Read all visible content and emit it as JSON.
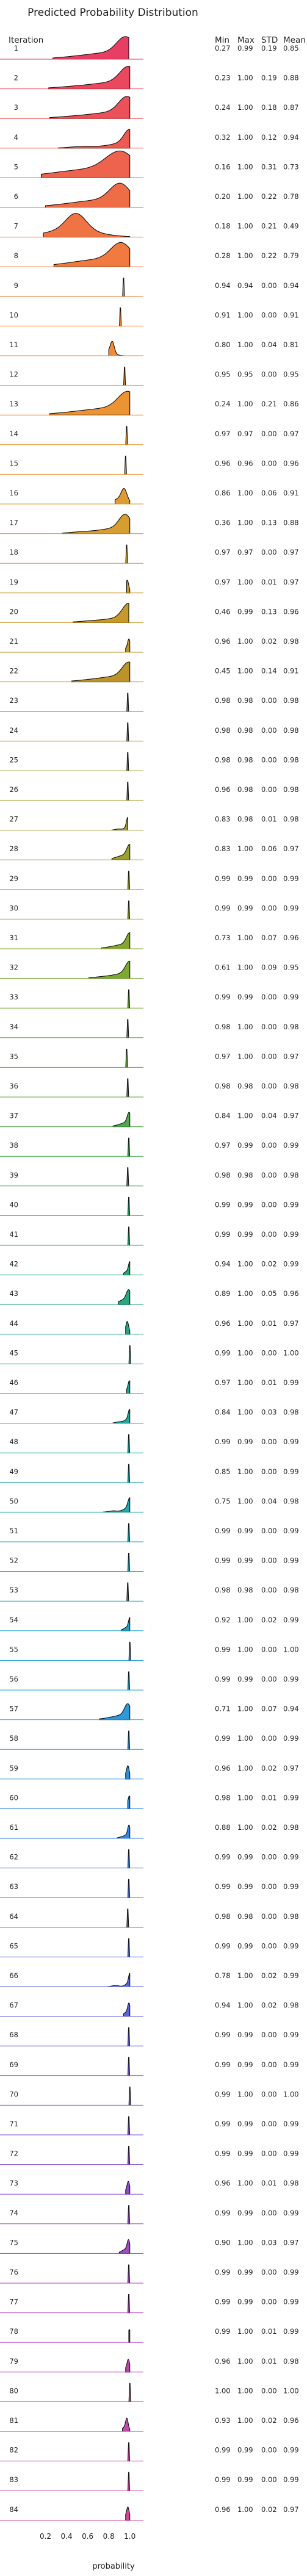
{
  "chart_data": {
    "type": "ridgeline",
    "title": "Predicted Probability Distribution",
    "row_header": "Iteration",
    "xlabel": "probability",
    "xlim": [
      0.0,
      1.1
    ],
    "xticks": [
      "0.2",
      "0.4",
      "0.6",
      "0.8",
      "1.0"
    ],
    "stat_headers": [
      "Min",
      "Max",
      "STD",
      "Mean"
    ],
    "color_stops": [
      "#e8345b",
      "#ee6a3a",
      "#f08c2a",
      "#d39a24",
      "#b08a1c",
      "#959d22",
      "#5fa829",
      "#2aa35a",
      "#16a28c",
      "#17a5b2",
      "#1f97d6",
      "#2f7ae0",
      "#5a5ad6",
      "#8a45c8",
      "#b13fb0",
      "#d23d97"
    ],
    "rows": [
      {
        "iteration": "1",
        "min": 0.27,
        "max": 0.99,
        "std": 0.19,
        "mean": 0.85
      },
      {
        "iteration": "2",
        "min": 0.23,
        "max": 1.0,
        "std": 0.19,
        "mean": 0.88
      },
      {
        "iteration": "3",
        "min": 0.24,
        "max": 1.0,
        "std": 0.18,
        "mean": 0.87
      },
      {
        "iteration": "4",
        "min": 0.32,
        "max": 1.0,
        "std": 0.12,
        "mean": 0.94
      },
      {
        "iteration": "5",
        "min": 0.16,
        "max": 1.0,
        "std": 0.31,
        "mean": 0.73
      },
      {
        "iteration": "6",
        "min": 0.2,
        "max": 1.0,
        "std": 0.22,
        "mean": 0.78
      },
      {
        "iteration": "7",
        "min": 0.18,
        "max": 1.0,
        "std": 0.21,
        "mean": 0.49
      },
      {
        "iteration": "8",
        "min": 0.28,
        "max": 1.0,
        "std": 0.22,
        "mean": 0.79
      },
      {
        "iteration": "9",
        "min": 0.94,
        "max": 0.94,
        "std": 0.0,
        "mean": 0.94
      },
      {
        "iteration": "10",
        "min": 0.91,
        "max": 1.0,
        "std": 0.0,
        "mean": 0.91
      },
      {
        "iteration": "11",
        "min": 0.8,
        "max": 1.0,
        "std": 0.04,
        "mean": 0.81
      },
      {
        "iteration": "12",
        "min": 0.95,
        "max": 0.95,
        "std": 0.0,
        "mean": 0.95
      },
      {
        "iteration": "13",
        "min": 0.24,
        "max": 1.0,
        "std": 0.21,
        "mean": 0.86
      },
      {
        "iteration": "14",
        "min": 0.97,
        "max": 0.97,
        "std": 0.0,
        "mean": 0.97
      },
      {
        "iteration": "15",
        "min": 0.96,
        "max": 0.96,
        "std": 0.0,
        "mean": 0.96
      },
      {
        "iteration": "16",
        "min": 0.86,
        "max": 1.0,
        "std": 0.06,
        "mean": 0.91
      },
      {
        "iteration": "17",
        "min": 0.36,
        "max": 1.0,
        "std": 0.13,
        "mean": 0.88
      },
      {
        "iteration": "18",
        "min": 0.97,
        "max": 0.97,
        "std": 0.0,
        "mean": 0.97
      },
      {
        "iteration": "19",
        "min": 0.97,
        "max": 1.0,
        "std": 0.01,
        "mean": 0.97
      },
      {
        "iteration": "20",
        "min": 0.46,
        "max": 0.99,
        "std": 0.13,
        "mean": 0.96
      },
      {
        "iteration": "21",
        "min": 0.96,
        "max": 1.0,
        "std": 0.02,
        "mean": 0.98
      },
      {
        "iteration": "22",
        "min": 0.45,
        "max": 1.0,
        "std": 0.14,
        "mean": 0.91
      },
      {
        "iteration": "23",
        "min": 0.98,
        "max": 0.98,
        "std": 0.0,
        "mean": 0.98
      },
      {
        "iteration": "24",
        "min": 0.98,
        "max": 0.98,
        "std": 0.0,
        "mean": 0.98
      },
      {
        "iteration": "25",
        "min": 0.98,
        "max": 0.98,
        "std": 0.0,
        "mean": 0.98
      },
      {
        "iteration": "26",
        "min": 0.96,
        "max": 0.98,
        "std": 0.0,
        "mean": 0.98
      },
      {
        "iteration": "27",
        "min": 0.83,
        "max": 0.98,
        "std": 0.01,
        "mean": 0.98
      },
      {
        "iteration": "28",
        "min": 0.83,
        "max": 1.0,
        "std": 0.06,
        "mean": 0.97
      },
      {
        "iteration": "29",
        "min": 0.99,
        "max": 0.99,
        "std": 0.0,
        "mean": 0.99
      },
      {
        "iteration": "30",
        "min": 0.99,
        "max": 0.99,
        "std": 0.0,
        "mean": 0.99
      },
      {
        "iteration": "31",
        "min": 0.73,
        "max": 1.0,
        "std": 0.07,
        "mean": 0.96
      },
      {
        "iteration": "32",
        "min": 0.61,
        "max": 1.0,
        "std": 0.09,
        "mean": 0.95
      },
      {
        "iteration": "33",
        "min": 0.99,
        "max": 0.99,
        "std": 0.0,
        "mean": 0.99
      },
      {
        "iteration": "34",
        "min": 0.98,
        "max": 1.0,
        "std": 0.0,
        "mean": 0.98
      },
      {
        "iteration": "35",
        "min": 0.97,
        "max": 1.0,
        "std": 0.0,
        "mean": 0.97
      },
      {
        "iteration": "36",
        "min": 0.98,
        "max": 0.98,
        "std": 0.0,
        "mean": 0.98
      },
      {
        "iteration": "37",
        "min": 0.84,
        "max": 1.0,
        "std": 0.04,
        "mean": 0.97
      },
      {
        "iteration": "38",
        "min": 0.97,
        "max": 0.99,
        "std": 0.0,
        "mean": 0.99
      },
      {
        "iteration": "39",
        "min": 0.98,
        "max": 0.98,
        "std": 0.0,
        "mean": 0.98
      },
      {
        "iteration": "40",
        "min": 0.99,
        "max": 0.99,
        "std": 0.0,
        "mean": 0.99
      },
      {
        "iteration": "41",
        "min": 0.99,
        "max": 0.99,
        "std": 0.0,
        "mean": 0.99
      },
      {
        "iteration": "42",
        "min": 0.94,
        "max": 1.0,
        "std": 0.02,
        "mean": 0.99
      },
      {
        "iteration": "43",
        "min": 0.89,
        "max": 1.0,
        "std": 0.05,
        "mean": 0.96
      },
      {
        "iteration": "44",
        "min": 0.96,
        "max": 1.0,
        "std": 0.01,
        "mean": 0.97
      },
      {
        "iteration": "45",
        "min": 0.99,
        "max": 1.0,
        "std": 0.0,
        "mean": 1.0
      },
      {
        "iteration": "46",
        "min": 0.97,
        "max": 1.0,
        "std": 0.01,
        "mean": 0.99
      },
      {
        "iteration": "47",
        "min": 0.84,
        "max": 1.0,
        "std": 0.03,
        "mean": 0.98
      },
      {
        "iteration": "48",
        "min": 0.99,
        "max": 0.99,
        "std": 0.0,
        "mean": 0.99
      },
      {
        "iteration": "49",
        "min": 0.85,
        "max": 1.0,
        "std": 0.0,
        "mean": 0.99
      },
      {
        "iteration": "50",
        "min": 0.75,
        "max": 1.0,
        "std": 0.04,
        "mean": 0.98
      },
      {
        "iteration": "51",
        "min": 0.99,
        "max": 0.99,
        "std": 0.0,
        "mean": 0.99
      },
      {
        "iteration": "52",
        "min": 0.99,
        "max": 0.99,
        "std": 0.0,
        "mean": 0.99
      },
      {
        "iteration": "53",
        "min": 0.98,
        "max": 0.98,
        "std": 0.0,
        "mean": 0.98
      },
      {
        "iteration": "54",
        "min": 0.92,
        "max": 1.0,
        "std": 0.02,
        "mean": 0.99
      },
      {
        "iteration": "55",
        "min": 0.99,
        "max": 1.0,
        "std": 0.0,
        "mean": 1.0
      },
      {
        "iteration": "56",
        "min": 0.99,
        "max": 0.99,
        "std": 0.0,
        "mean": 0.99
      },
      {
        "iteration": "57",
        "min": 0.71,
        "max": 1.0,
        "std": 0.07,
        "mean": 0.94
      },
      {
        "iteration": "58",
        "min": 0.99,
        "max": 1.0,
        "std": 0.0,
        "mean": 0.99
      },
      {
        "iteration": "59",
        "min": 0.96,
        "max": 1.0,
        "std": 0.02,
        "mean": 0.97
      },
      {
        "iteration": "60",
        "min": 0.98,
        "max": 1.0,
        "std": 0.01,
        "mean": 0.99
      },
      {
        "iteration": "61",
        "min": 0.88,
        "max": 1.0,
        "std": 0.02,
        "mean": 0.98
      },
      {
        "iteration": "62",
        "min": 0.99,
        "max": 0.99,
        "std": 0.0,
        "mean": 0.99
      },
      {
        "iteration": "63",
        "min": 0.99,
        "max": 0.99,
        "std": 0.0,
        "mean": 0.99
      },
      {
        "iteration": "64",
        "min": 0.98,
        "max": 0.98,
        "std": 0.0,
        "mean": 0.98
      },
      {
        "iteration": "65",
        "min": 0.99,
        "max": 0.99,
        "std": 0.0,
        "mean": 0.99
      },
      {
        "iteration": "66",
        "min": 0.78,
        "max": 1.0,
        "std": 0.02,
        "mean": 0.99
      },
      {
        "iteration": "67",
        "min": 0.94,
        "max": 1.0,
        "std": 0.02,
        "mean": 0.98
      },
      {
        "iteration": "68",
        "min": 0.99,
        "max": 0.99,
        "std": 0.0,
        "mean": 0.99
      },
      {
        "iteration": "69",
        "min": 0.99,
        "max": 0.99,
        "std": 0.0,
        "mean": 0.99
      },
      {
        "iteration": "70",
        "min": 0.99,
        "max": 1.0,
        "std": 0.0,
        "mean": 1.0
      },
      {
        "iteration": "71",
        "min": 0.99,
        "max": 0.99,
        "std": 0.0,
        "mean": 0.99
      },
      {
        "iteration": "72",
        "min": 0.99,
        "max": 0.99,
        "std": 0.0,
        "mean": 0.99
      },
      {
        "iteration": "73",
        "min": 0.96,
        "max": 1.0,
        "std": 0.01,
        "mean": 0.98
      },
      {
        "iteration": "74",
        "min": 0.99,
        "max": 0.99,
        "std": 0.0,
        "mean": 0.99
      },
      {
        "iteration": "75",
        "min": 0.9,
        "max": 1.0,
        "std": 0.03,
        "mean": 0.97
      },
      {
        "iteration": "76",
        "min": 0.99,
        "max": 0.99,
        "std": 0.0,
        "mean": 0.99
      },
      {
        "iteration": "77",
        "min": 0.99,
        "max": 0.99,
        "std": 0.0,
        "mean": 0.99
      },
      {
        "iteration": "78",
        "min": 0.99,
        "max": 1.0,
        "std": 0.01,
        "mean": 0.99
      },
      {
        "iteration": "79",
        "min": 0.96,
        "max": 1.0,
        "std": 0.01,
        "mean": 0.98
      },
      {
        "iteration": "80",
        "min": 1.0,
        "max": 1.0,
        "std": 0.0,
        "mean": 1.0
      },
      {
        "iteration": "81",
        "min": 0.93,
        "max": 1.0,
        "std": 0.02,
        "mean": 0.96
      },
      {
        "iteration": "82",
        "min": 0.99,
        "max": 0.99,
        "std": 0.0,
        "mean": 0.99
      },
      {
        "iteration": "83",
        "min": 0.99,
        "max": 0.99,
        "std": 0.0,
        "mean": 0.99
      },
      {
        "iteration": "84",
        "min": 0.96,
        "max": 1.0,
        "std": 0.02,
        "mean": 0.97
      }
    ]
  }
}
